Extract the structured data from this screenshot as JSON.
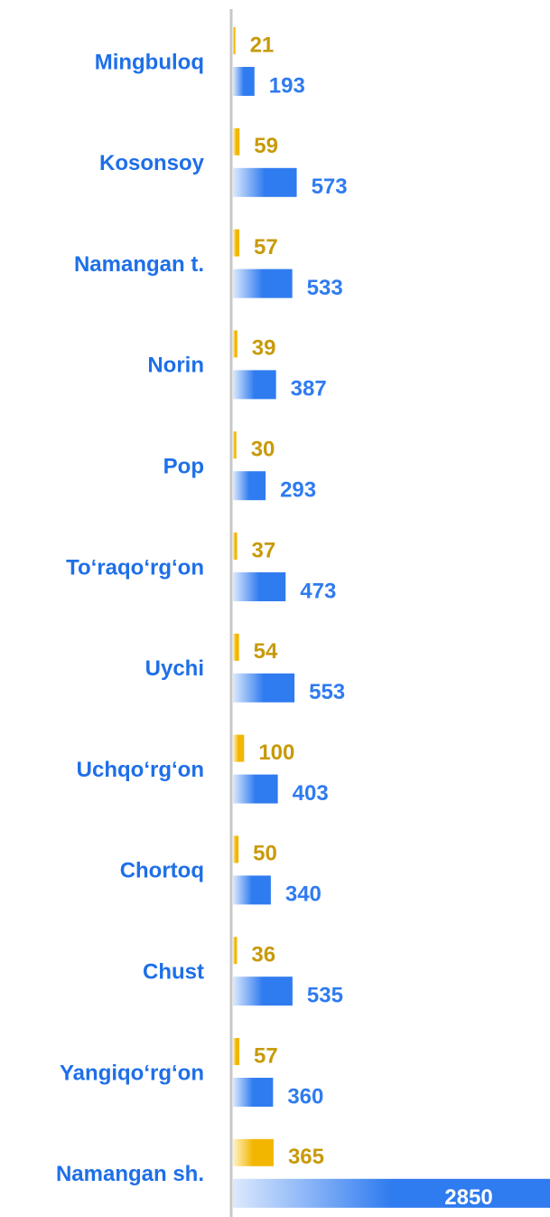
{
  "chart_data": {
    "type": "barh",
    "categories": [
      "Mingbuloq",
      "Kosonsoy",
      "Namangan t.",
      "Norin",
      "Pop",
      "To‘raqo‘rg‘on",
      "Uychi",
      "Uchqo‘rg‘on",
      "Chortoq",
      "Chust",
      "Yangiqo‘rg‘on",
      "Namangan sh."
    ],
    "series": [
      {
        "color": "#f2b600",
        "values": [
          21,
          59,
          57,
          39,
          30,
          37,
          54,
          100,
          50,
          36,
          57,
          365
        ]
      },
      {
        "color": "#2f7bf0",
        "values": [
          193,
          573,
          533,
          387,
          293,
          473,
          553,
          403,
          340,
          535,
          360,
          2850
        ]
      }
    ],
    "xlim": [
      0,
      2850
    ]
  }
}
